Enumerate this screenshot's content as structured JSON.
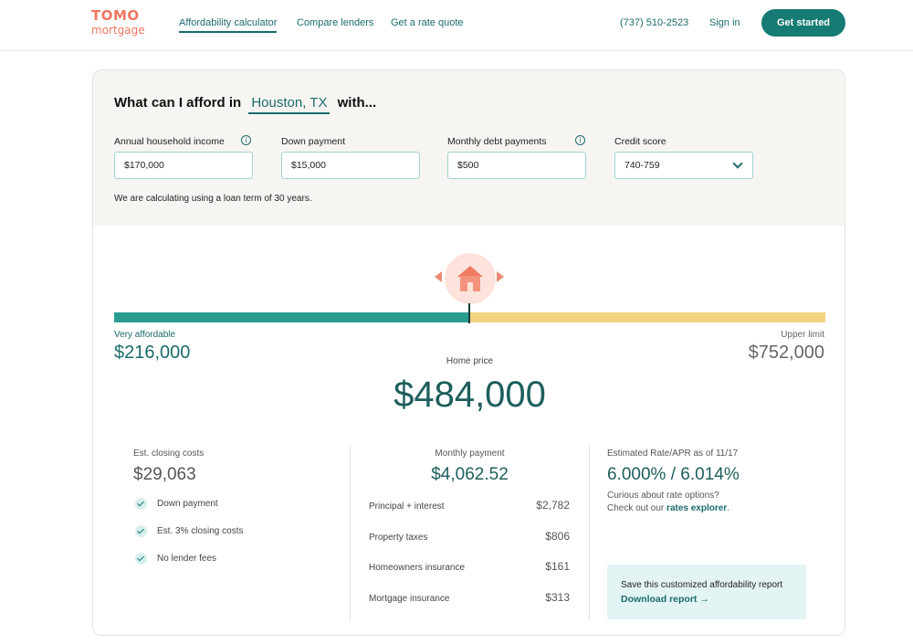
{
  "brand": {
    "logo_top": "TOMO",
    "logo_bottom": "mortgage",
    "accent": "#167a75",
    "coral": "#f0765f"
  },
  "nav": {
    "items": [
      "Affordability calculator",
      "Compare lenders",
      "Get a rate quote"
    ],
    "phone": "(737) 510-2523",
    "signin": "Sign in",
    "cta": "Get started"
  },
  "form": {
    "question_prefix": "What can I afford in",
    "location": "Houston, TX",
    "question_suffix": "with...",
    "fields": [
      {
        "label": "Annual household income",
        "value": "$170,000"
      },
      {
        "label": "Down payment",
        "value": "$15,000"
      },
      {
        "label": "Monthly debt payments",
        "value": "$500"
      },
      {
        "label": "Credit score",
        "value": "740-759"
      }
    ],
    "term_note": "We are calculating using a loan term of 30 years."
  },
  "range": {
    "low_label": "Very affordable",
    "low_value": "$216,000",
    "high_label": "Upper limit",
    "high_value": "$752,000",
    "home_label": "Home price",
    "home_value": "$484,000"
  },
  "closing": {
    "label": "Est. closing costs",
    "value": "$29,063",
    "checks": [
      "Down payment",
      "Est. 3% closing costs",
      "No lender fees"
    ]
  },
  "payment": {
    "label": "Monthly payment",
    "value": "$4,062.52",
    "rows": [
      {
        "label": "Principal + interest",
        "value": "$2,782"
      },
      {
        "label": "Property taxes",
        "value": "$806"
      },
      {
        "label": "Homeowners insurance",
        "value": "$161"
      },
      {
        "label": "Mortgage insurance",
        "value": "$313"
      }
    ]
  },
  "rate": {
    "label": "Estimated Rate/APR as of 11/17",
    "value": "6.000% / 6.014%",
    "curious": "Curious about rate options?",
    "check_prefix": "Check out our",
    "link": "rates explorer",
    "report_title": "Save this customized affordability report",
    "report_link": "Download report"
  }
}
